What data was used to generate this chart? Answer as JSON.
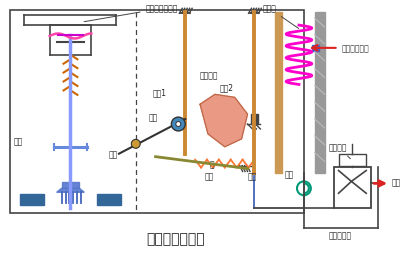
{
  "title": "气动阀门定位器",
  "title_fontsize": 10,
  "bg_color": "#ffffff",
  "label_气动薄膜调节阀": "气动薄膜调节阀",
  "label_波纹管": "波纹管",
  "label_压力信号输入": "压力信号输入",
  "label_杠杆1": "杠杆1",
  "label_杠杆2": "杠杆2",
  "label_偏心凸轮": "偏心凸轮",
  "label_滚轮": "滚轮",
  "label_平板": "平板",
  "label_拨杆": "拨杆",
  "label_轴": "轴",
  "label_弹簧": "弹簧",
  "label_挡板": "挡板",
  "label_喷嘴": "喷嘴",
  "label_恒节流孔": "恒节流孔",
  "label_气源": "气源",
  "label_气动放大器": "气动放大器"
}
